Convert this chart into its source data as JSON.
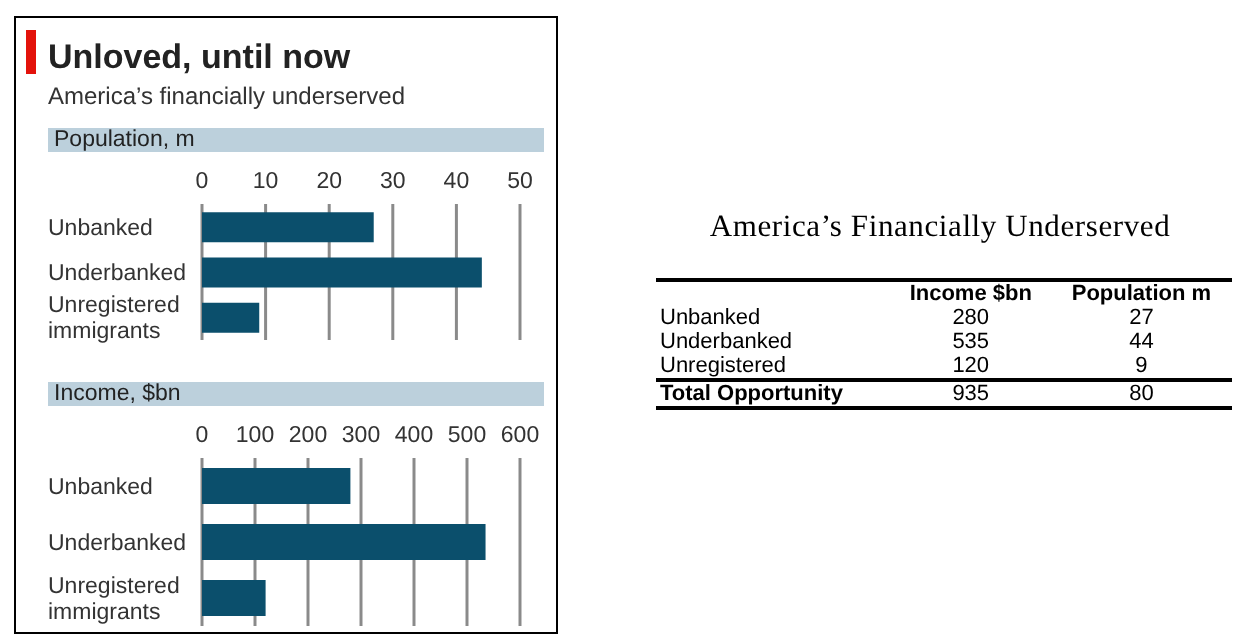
{
  "chart_data": [
    {
      "type": "bar",
      "orientation": "horizontal",
      "title": "Unloved, until now",
      "subtitle": "America’s financially underserved",
      "xlabel": "Population, m",
      "categories": [
        "Unbanked",
        "Underbanked",
        "Unregistered immigrants"
      ],
      "values": [
        27,
        44,
        9
      ],
      "color": "#0b4f6c",
      "xlim": [
        0,
        50
      ],
      "xticks": [
        0,
        10,
        20,
        30,
        40,
        50
      ],
      "grid": "x"
    },
    {
      "type": "bar",
      "orientation": "horizontal",
      "xlabel": "Income, $bn",
      "categories": [
        "Unbanked",
        "Underbanked",
        "Unregistered immigrants"
      ],
      "values": [
        280,
        535,
        120
      ],
      "color": "#0b4f6c",
      "xlim": [
        0,
        600
      ],
      "xticks": [
        0,
        100,
        200,
        300,
        400,
        500,
        600
      ],
      "grid": "x"
    },
    {
      "type": "other",
      "title": "America’s Financially Underserved",
      "annotations": [
        "Income $bn",
        "Population m",
        "Unbanked",
        "280",
        "27",
        "Underbanked",
        "535",
        "44",
        "Unregistered",
        "120",
        "9",
        "Total Opportunity",
        "935",
        "80"
      ]
    }
  ]
}
